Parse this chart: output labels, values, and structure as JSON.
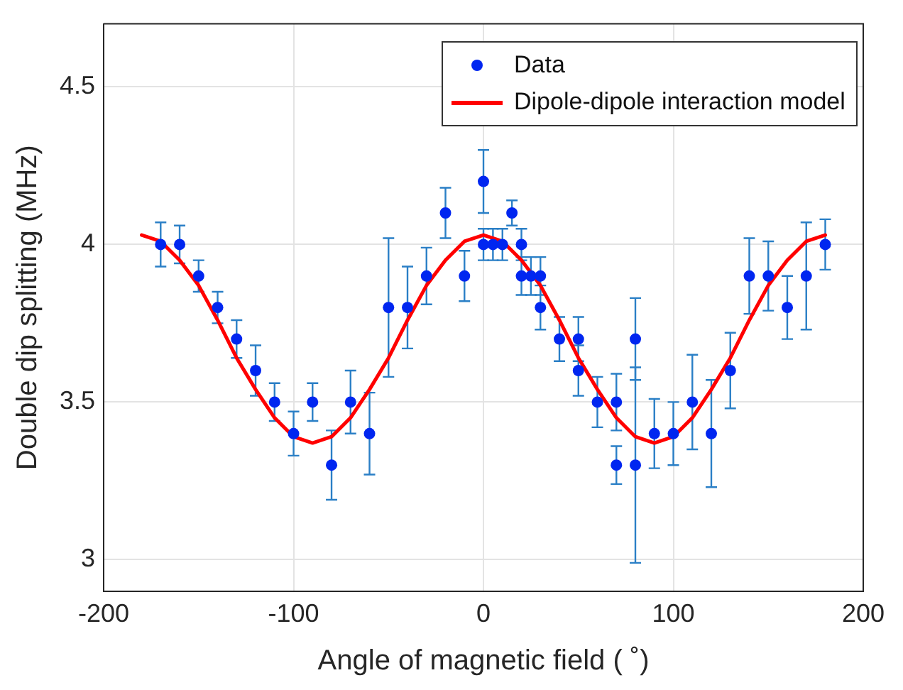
{
  "chart_data": {
    "type": "scatter",
    "xlabel": "Angle of magnetic field ( ˚)",
    "ylabel": "Double dip splitting (MHz)",
    "xlim": [
      -200,
      200
    ],
    "xticks": [
      -200,
      -100,
      0,
      100,
      200
    ],
    "ylim": [
      2.9,
      4.7
    ],
    "yticks": [
      3,
      3.5,
      4,
      4.5
    ],
    "grid": true,
    "legend": "top right",
    "series": [
      {
        "name": "Data",
        "marker": "circle",
        "color": "#0026f0",
        "x": [
          -170,
          -160,
          -150,
          -140,
          -130,
          -120,
          -110,
          -100,
          -90,
          -80,
          -70,
          -60,
          -50,
          -40,
          -30,
          -20,
          -10,
          0,
          0,
          5,
          10,
          15,
          20,
          20,
          25,
          30,
          30,
          40,
          50,
          50,
          60,
          70,
          70,
          80,
          80,
          90,
          100,
          110,
          120,
          130,
          140,
          150,
          160,
          170,
          180
        ],
        "values": [
          4.0,
          4.0,
          3.9,
          3.8,
          3.7,
          3.6,
          3.5,
          3.4,
          3.5,
          3.3,
          3.5,
          3.4,
          3.8,
          3.8,
          3.9,
          4.1,
          3.9,
          4.2,
          4.0,
          4.0,
          4.0,
          4.1,
          4.0,
          3.9,
          3.9,
          3.9,
          3.8,
          3.7,
          3.7,
          3.6,
          3.5,
          3.5,
          3.3,
          3.7,
          3.3,
          3.4,
          3.4,
          3.5,
          3.4,
          3.6,
          3.9,
          3.9,
          3.8,
          3.9,
          4.0
        ],
        "errors": [
          0.07,
          0.06,
          0.05,
          0.05,
          0.06,
          0.08,
          0.06,
          0.07,
          0.06,
          0.11,
          0.1,
          0.13,
          0.22,
          0.13,
          0.09,
          0.08,
          0.08,
          0.1,
          0.05,
          0.05,
          0.05,
          0.04,
          0.05,
          0.06,
          0.06,
          0.06,
          0.07,
          0.07,
          0.07,
          0.08,
          0.08,
          0.09,
          0.06,
          0.13,
          0.31,
          0.11,
          0.1,
          0.15,
          0.17,
          0.12,
          0.12,
          0.11,
          0.1,
          0.17,
          0.08
        ]
      },
      {
        "name": "Dipole-dipole interaction model",
        "type": "line",
        "marker": "none",
        "color": "#ff0000",
        "x": [
          -180,
          -170,
          -160,
          -150,
          -140,
          -130,
          -120,
          -110,
          -100,
          -90,
          -80,
          -70,
          -60,
          -50,
          -40,
          -30,
          -20,
          -10,
          0,
          10,
          20,
          30,
          40,
          50,
          60,
          70,
          80,
          90,
          100,
          110,
          120,
          130,
          140,
          150,
          160,
          170,
          180
        ],
        "values": [
          4.03,
          4.01,
          3.95,
          3.87,
          3.76,
          3.64,
          3.54,
          3.45,
          3.39,
          3.37,
          3.39,
          3.45,
          3.54,
          3.64,
          3.76,
          3.87,
          3.95,
          4.01,
          4.03,
          4.01,
          3.95,
          3.87,
          3.76,
          3.64,
          3.54,
          3.45,
          3.39,
          3.37,
          3.39,
          3.45,
          3.54,
          3.64,
          3.76,
          3.87,
          3.95,
          4.01,
          4.03
        ]
      }
    ]
  }
}
